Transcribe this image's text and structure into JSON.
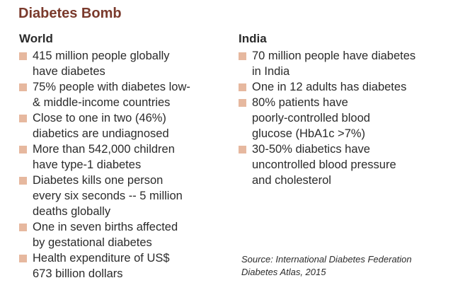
{
  "title": "Diabetes Bomb",
  "world": {
    "heading": "World",
    "items": [
      {
        "lines": [
          "415 million people globally",
          "have diabetes"
        ]
      },
      {
        "lines": [
          "75% people with diabetes low-",
          "& middle-income countries"
        ]
      },
      {
        "lines": [
          "Close to one in two (46%)",
          "diabetics are undiagnosed"
        ]
      },
      {
        "lines": [
          "More than 542,000 children",
          "have type-1 diabetes"
        ]
      },
      {
        "lines": [
          "Diabetes kills one person",
          "every six seconds -- 5 million",
          "deaths globally"
        ]
      },
      {
        "lines": [
          "One in seven births affected",
          "by gestational diabetes"
        ]
      },
      {
        "lines": [
          "Health expenditure of US$",
          "673 billion dollars"
        ]
      }
    ]
  },
  "india": {
    "heading": "India",
    "items": [
      {
        "lines": [
          "70 million people have diabetes",
          "in India"
        ]
      },
      {
        "lines": [
          "One in 12 adults has diabetes"
        ]
      },
      {
        "lines": [
          "80% patients have",
          "poorly-controlled blood",
          "glucose (HbA1c >7%)"
        ]
      },
      {
        "lines": [
          "30-50% diabetics have",
          "uncontrolled blood pressure",
          "and cholesterol"
        ]
      }
    ]
  },
  "source": {
    "line1": "Source: International Diabetes Federation",
    "line2": "Diabetes Atlas, 2015"
  },
  "colors": {
    "title": "#7a3a2c",
    "bullet": "#e6b89f",
    "text": "#2b2b2b"
  }
}
